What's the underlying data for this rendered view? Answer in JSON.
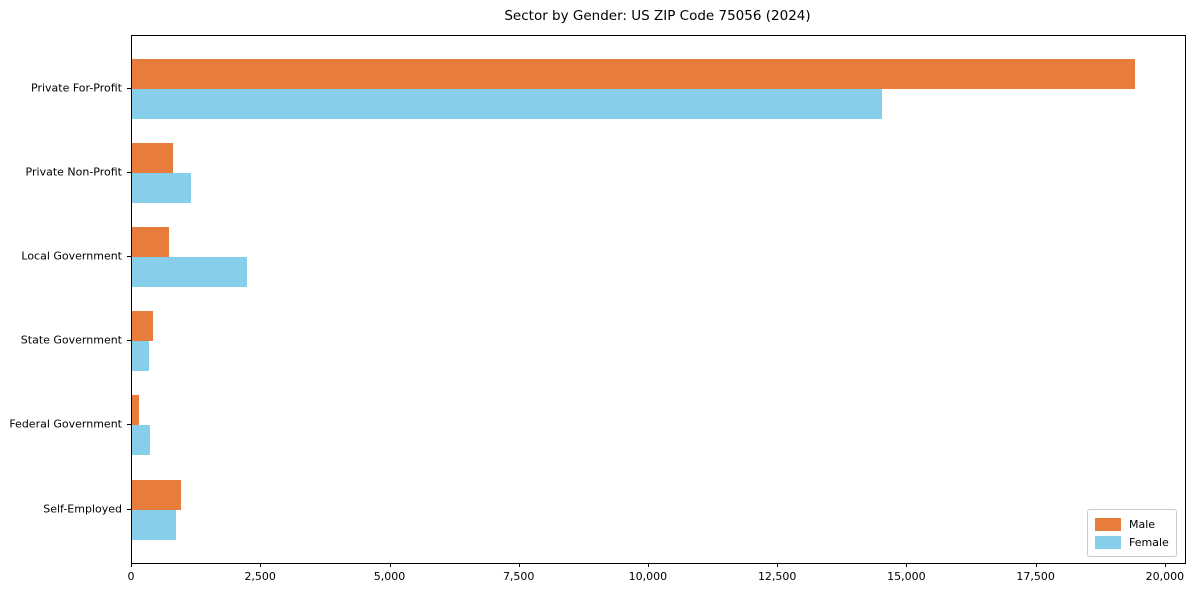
{
  "chart_data": {
    "type": "bar",
    "orientation": "horizontal",
    "title": "Sector by Gender: US ZIP Code 75056 (2024)",
    "categories": [
      "Private For-Profit",
      "Private Non-Profit",
      "Local Government",
      "State Government",
      "Federal Government",
      "Self-Employed"
    ],
    "series": [
      {
        "name": "Male",
        "color": "#E87C3C",
        "values": [
          19400,
          790,
          720,
          410,
          140,
          950
        ]
      },
      {
        "name": "Female",
        "color": "#87CEEB",
        "values": [
          14500,
          1140,
          2220,
          330,
          350,
          850
        ]
      }
    ],
    "xlim": [
      0,
      20370
    ],
    "xticks": [
      0,
      2500,
      5000,
      7500,
      10000,
      12500,
      15000,
      17500,
      20000
    ],
    "xtick_labels": [
      "0",
      "2,500",
      "5,000",
      "7,500",
      "10,000",
      "12,500",
      "15,000",
      "17,500",
      "20,000"
    ],
    "xlabel": "",
    "ylabel": "",
    "grid": false,
    "legend": {
      "position": "lower-right",
      "entries": [
        "Male",
        "Female"
      ]
    },
    "colors": {
      "male": "#E87C3C",
      "female": "#87CEEB",
      "axis": "#000000",
      "legend_border": "#cccccc"
    }
  }
}
